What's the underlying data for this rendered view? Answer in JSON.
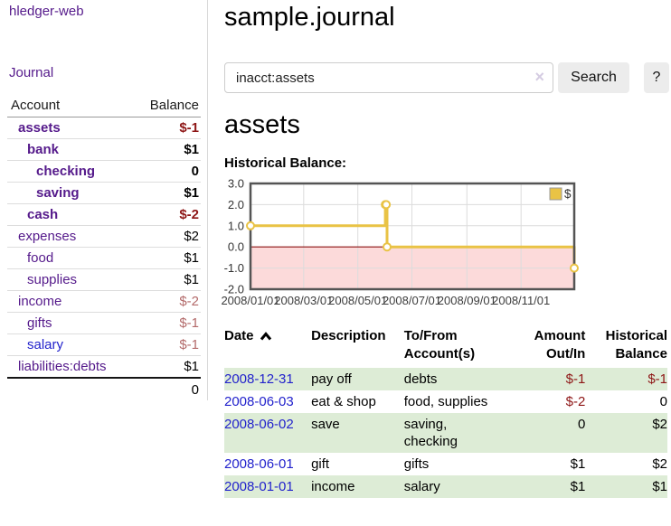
{
  "sidebar": {
    "brand": "hledger-web",
    "journal_label": "Journal",
    "accounts_table": {
      "account_header": "Account",
      "balance_header": "Balance",
      "rows": [
        {
          "name": "assets",
          "indent": 1,
          "bold": true,
          "balance": "$-1",
          "negative": "strong",
          "link": "purple"
        },
        {
          "name": "bank",
          "indent": 2,
          "bold": true,
          "balance": "$1",
          "negative": "none",
          "link": "purple"
        },
        {
          "name": "checking",
          "indent": 3,
          "bold": true,
          "balance": "0",
          "negative": "none",
          "link": "purple"
        },
        {
          "name": "saving",
          "indent": 3,
          "bold": true,
          "balance": "$1",
          "negative": "none",
          "link": "purple"
        },
        {
          "name": "cash",
          "indent": 2,
          "bold": true,
          "balance": "$-2",
          "negative": "strong",
          "link": "purple"
        },
        {
          "name": "expenses",
          "indent": 1,
          "bold": false,
          "balance": "$2",
          "negative": "none",
          "link": "purple"
        },
        {
          "name": "food",
          "indent": 2,
          "bold": false,
          "balance": "$1",
          "negative": "none",
          "link": "purple"
        },
        {
          "name": "supplies",
          "indent": 2,
          "bold": false,
          "balance": "$1",
          "negative": "none",
          "link": "purple"
        },
        {
          "name": "income",
          "indent": 1,
          "bold": false,
          "balance": "$-2",
          "negative": "soft",
          "link": "purple"
        },
        {
          "name": "gifts",
          "indent": 2,
          "bold": false,
          "balance": "$-1",
          "negative": "soft",
          "link": "purple"
        },
        {
          "name": "salary",
          "indent": 2,
          "bold": false,
          "balance": "$-1",
          "negative": "soft",
          "link": "blue"
        },
        {
          "name": "liabilities:debts",
          "indent": 1,
          "bold": false,
          "balance": "$1",
          "negative": "none",
          "link": "purple"
        }
      ],
      "total": "0"
    }
  },
  "main": {
    "title": "sample.journal",
    "search": {
      "value": "inacct:assets",
      "clear_icon": "×",
      "button_label": "Search",
      "help_label": "?"
    },
    "account_heading": "assets",
    "chart_label": "Historical Balance:",
    "register": {
      "headers": {
        "date": "Date",
        "sort_icon": "chevron-up-icon",
        "description": "Description",
        "accounts": "To/From\nAccount(s)",
        "amount": "Amount\nOut/In",
        "balance": "Historical\nBalance"
      },
      "rows": [
        {
          "date": "2008-12-31",
          "description": "pay off",
          "accounts": "debts",
          "amount": "$-1",
          "amount_negative": true,
          "balance": "$-1",
          "balance_negative": true,
          "shaded": true
        },
        {
          "date": "2008-06-03",
          "description": "eat & shop",
          "accounts": "food, supplies",
          "amount": "$-2",
          "amount_negative": true,
          "balance": "0",
          "balance_negative": false,
          "shaded": false
        },
        {
          "date": "2008-06-02",
          "description": "save",
          "accounts": "saving,\nchecking",
          "amount": "0",
          "amount_negative": false,
          "balance": "$2",
          "balance_negative": false,
          "shaded": true
        },
        {
          "date": "2008-06-01",
          "description": "gift",
          "accounts": "gifts",
          "amount": "$1",
          "amount_negative": false,
          "balance": "$2",
          "balance_negative": false,
          "shaded": false
        },
        {
          "date": "2008-01-01",
          "description": "income",
          "accounts": "salary",
          "amount": "$1",
          "amount_negative": false,
          "balance": "$1",
          "balance_negative": false,
          "shaded": true
        }
      ]
    }
  },
  "chart_data": {
    "type": "line",
    "step": true,
    "title": "Historical Balance:",
    "series": [
      {
        "name": "$",
        "points": [
          {
            "date": "2008-01-01",
            "day": 0,
            "value": 1
          },
          {
            "date": "2008-06-01",
            "day": 152,
            "value": 2
          },
          {
            "date": "2008-06-02",
            "day": 153,
            "value": 2
          },
          {
            "date": "2008-06-03",
            "day": 154,
            "value": 0
          },
          {
            "date": "2008-12-31",
            "day": 365,
            "value": -1
          }
        ]
      }
    ],
    "x_max": 365,
    "ylim": [
      -2,
      3
    ],
    "yticks": [
      3,
      2,
      1,
      0,
      -1,
      -2
    ],
    "xticks": [
      {
        "label": "2008/01/01",
        "day": 0
      },
      {
        "label": "2008/03/01",
        "day": 60
      },
      {
        "label": "2008/05/01",
        "day": 121
      },
      {
        "label": "2008/07/01",
        "day": 182
      },
      {
        "label": "2008/09/01",
        "day": 244
      },
      {
        "label": "2008/11/01",
        "day": 305
      }
    ],
    "grid": true,
    "legend_position": "top-right",
    "colors": {
      "line": "#e9c345",
      "marker_fill": "#ffffff",
      "negative_fill": "#fcdada",
      "zero_line": "#8b1111",
      "border": "#545454",
      "grid": "#dcdcdc"
    }
  }
}
